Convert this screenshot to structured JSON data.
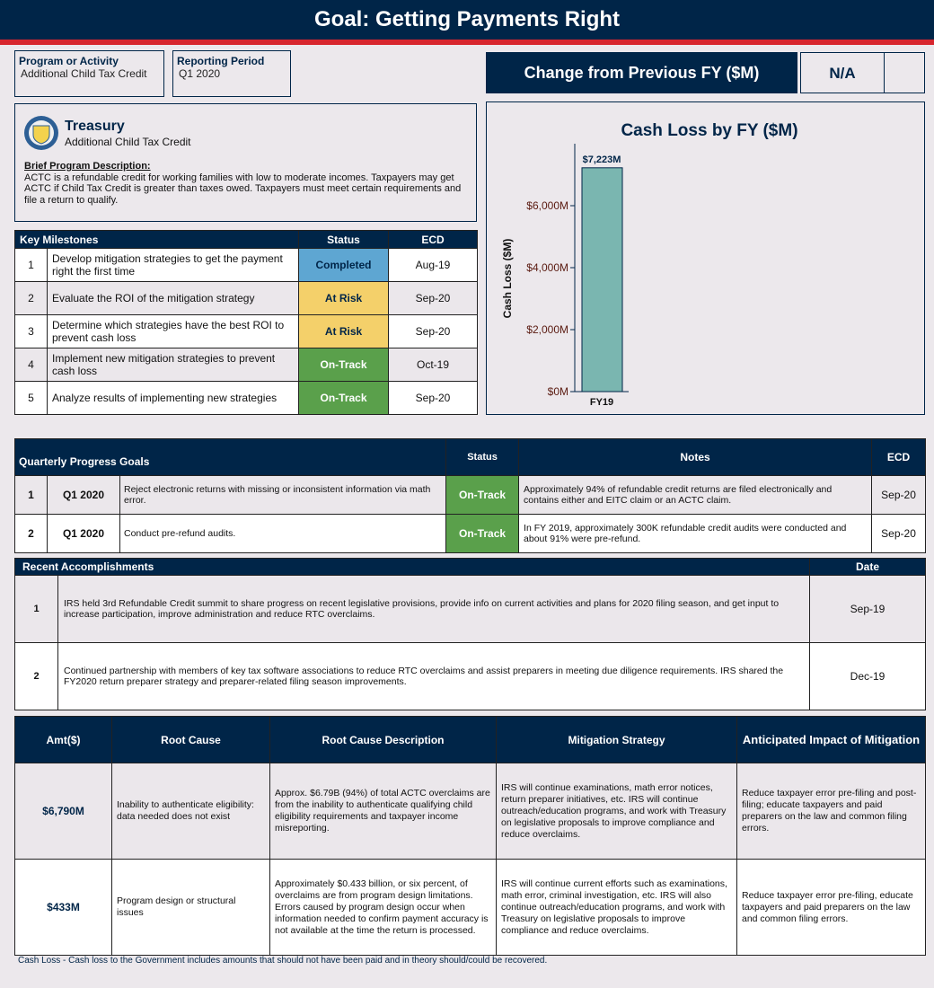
{
  "header": {
    "title": "Goal: Getting Payments Right"
  },
  "program": {
    "label": "Program or Activity",
    "value": "Additional Child Tax Credit"
  },
  "period": {
    "label": "Reporting Period",
    "value": "Q1 2020"
  },
  "change": {
    "label": "Change from Previous FY ($M)",
    "value": "N/A"
  },
  "agency": {
    "name": "Treasury",
    "program": "Additional Child Tax Credit",
    "desc_label": "Brief Program Description:",
    "desc": "ACTC is a refundable credit for working families with low to moderate incomes. Taxpayers may get ACTC if Child Tax Credit is greater than taxes owed. Taxpayers must meet certain requirements and file a return to qualify."
  },
  "colors": {
    "navy": "#002548",
    "red": "#d7262e",
    "completed": "#5ea6d2",
    "at_risk": "#f4d06a",
    "on_track": "#5aa04b",
    "bar": "#7ab6b0"
  },
  "milestones": {
    "headers": [
      "Key Milestones",
      "Status",
      "ECD"
    ],
    "rows": [
      {
        "n": "1",
        "desc": "Develop mitigation strategies to get the payment right the first time",
        "status": "Completed",
        "ecd": "Aug-19"
      },
      {
        "n": "2",
        "desc": "Evaluate the ROI of the mitigation strategy",
        "status": "At Risk",
        "ecd": "Sep-20"
      },
      {
        "n": "3",
        "desc": "Determine which strategies have the best ROI to prevent cash loss",
        "status": "At Risk",
        "ecd": "Sep-20"
      },
      {
        "n": "4",
        "desc": "Implement new mitigation strategies to prevent cash loss",
        "status": "On-Track",
        "ecd": "Oct-19"
      },
      {
        "n": "5",
        "desc": "Analyze results of implementing new strategies",
        "status": "On-Track",
        "ecd": "Sep-20"
      }
    ]
  },
  "chart_data": {
    "type": "bar",
    "title": "Cash Loss by FY ($M)",
    "ylabel": "Cash Loss ($M)",
    "xlabel": "",
    "categories": [
      "FY19"
    ],
    "values": [
      7223
    ],
    "data_labels": [
      "$7,223M"
    ],
    "ylim": [
      0,
      8000
    ],
    "yticks": [
      0,
      2000,
      4000,
      6000
    ],
    "ytick_labels": [
      "$0M",
      "$2,000M",
      "$4,000M",
      "$6,000M"
    ],
    "grid": false
  },
  "quarterly": {
    "headers": [
      "Quarterly Progress Goals",
      "Status",
      "Notes",
      "ECD"
    ],
    "rows": [
      {
        "n": "1",
        "q": "Q1 2020",
        "goal": "Reject electronic returns with missing or inconsistent information via math error.",
        "status": "On-Track",
        "notes": "Approximately 94% of refundable credit returns are filed electronically and contains either and EITC claim or an ACTC claim.",
        "ecd": "Sep-20"
      },
      {
        "n": "2",
        "q": "Q1 2020",
        "goal": "Conduct pre-refund audits.",
        "status": "On-Track",
        "notes": "In FY 2019, approximately 300K refundable credit audits were conducted and about 91% were pre-refund.",
        "ecd": "Sep-20"
      }
    ]
  },
  "accomplishments": {
    "headers": [
      "Recent  Accomplishments",
      "Date"
    ],
    "rows": [
      {
        "n": "1",
        "text": "IRS held 3rd Refundable Credit summit to share progress on recent legislative provisions, provide info on current activities and plans for 2020 filing season, and get input to increase participation, improve administration and reduce RTC overclaims.",
        "date": "Sep-19"
      },
      {
        "n": "2",
        "text": "Continued partnership with members of key tax software associations to reduce RTC overclaims and assist preparers in meeting due diligence requirements. IRS shared the FY2020 return preparer strategy and preparer-related filing season improvements.",
        "date": "Dec-19"
      }
    ]
  },
  "root_causes": {
    "headers": [
      "Amt($)",
      "Root Cause",
      "Root Cause Description",
      "Mitigation Strategy",
      "Anticipated Impact of Mitigation"
    ],
    "rows": [
      {
        "amt": "$6,790M",
        "cause": "Inability to authenticate eligibility: data needed does not exist",
        "desc": "Approx. $6.79B (94%) of total ACTC overclaims are from the inability to authenticate qualifying child eligibility requirements and taxpayer income misreporting.",
        "strategy": "IRS will continue examinations, math error notices, return preparer initiatives, etc.  IRS will continue outreach/education programs, and work with Treasury on legislative proposals to improve compliance and reduce overclaims.",
        "impact": "Reduce taxpayer error pre-filing and post-filing; educate taxpayers and paid preparers on the law and common filing errors."
      },
      {
        "amt": "$433M",
        "cause": "Program design or structural issues",
        "desc": "Approximately $0.433 billion, or six percent, of overclaims are from program design limitations. Errors caused by program design occur when information needed to confirm payment accuracy is not available at the time the return is processed.",
        "strategy": "IRS will continue current efforts such as examinations, math error, criminal investigation, etc. IRS will also continue outreach/education programs, and work with Treasury on legislative proposals to improve compliance and reduce overclaims.",
        "impact": "Reduce taxpayer error pre-filing, educate taxpayers and paid preparers on the law and common filing errors."
      }
    ]
  },
  "footnote": "Cash Loss - Cash loss to the Government includes amounts that should not have been paid and in theory should/could be recovered."
}
